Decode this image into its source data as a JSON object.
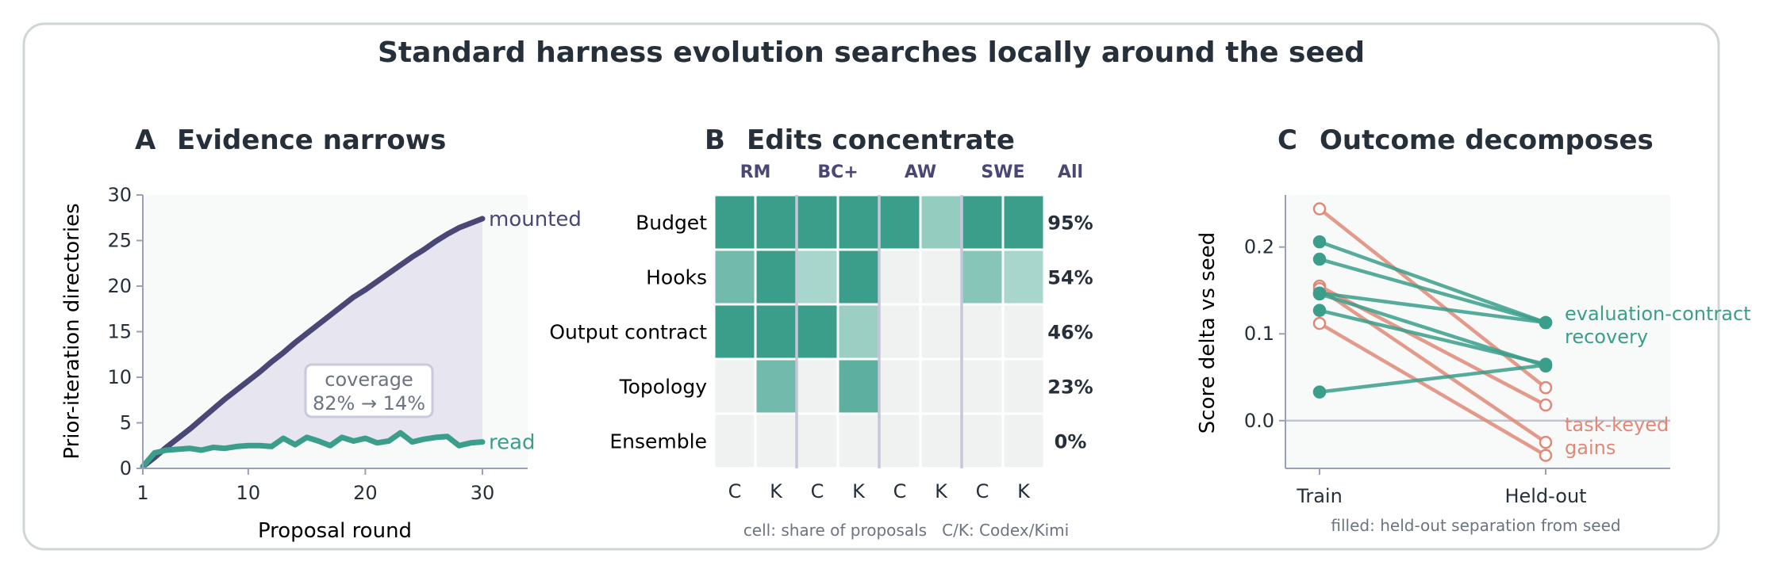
{
  "title": "Standard harness evolution searches locally around the seed",
  "colors": {
    "text": "#26303a",
    "muted": "#6b7480",
    "axis": "#9aa0b8",
    "purple": "#4a4675",
    "purple_fill": "#e6e5f0",
    "teal": "#3a9e8a",
    "salmon": "#e08878",
    "cell_empty": "#eff2f1",
    "panel_bg": "#f8faf9",
    "border": "#cfd6d4"
  },
  "chart_data": [
    {
      "type": "line",
      "panel_letter": "A",
      "title": "Evidence narrows",
      "xlabel": "Proposal round",
      "ylabel": "Prior-iteration directories",
      "xlim": [
        1,
        34
      ],
      "ylim": [
        0,
        30
      ],
      "xticks": [
        1,
        10,
        20,
        30
      ],
      "yticks": [
        0,
        5,
        10,
        15,
        20,
        25,
        30
      ],
      "x": [
        1,
        2,
        3,
        4,
        5,
        6,
        7,
        8,
        9,
        10,
        11,
        12,
        13,
        14,
        15,
        16,
        17,
        18,
        19,
        20,
        21,
        22,
        23,
        24,
        25,
        26,
        27,
        28,
        29,
        30
      ],
      "series": [
        {
          "name": "mounted",
          "color": "#4a4675",
          "values": [
            0.2,
            1.2,
            2.3,
            3.3,
            4.3,
            5.4,
            6.5,
            7.6,
            8.6,
            9.6,
            10.6,
            11.7,
            12.7,
            13.8,
            14.8,
            15.8,
            16.8,
            17.8,
            18.8,
            19.6,
            20.5,
            21.4,
            22.3,
            23.2,
            24.0,
            24.9,
            25.7,
            26.4,
            26.9,
            27.4
          ]
        },
        {
          "name": "read",
          "color": "#3a9e8a",
          "values": [
            0.2,
            1.7,
            2.0,
            2.1,
            2.2,
            2.0,
            2.3,
            2.2,
            2.4,
            2.5,
            2.5,
            2.4,
            3.3,
            2.6,
            3.4,
            3.0,
            2.5,
            3.4,
            3.0,
            3.3,
            2.8,
            3.0,
            3.9,
            2.9,
            3.2,
            3.4,
            3.5,
            2.5,
            2.8,
            2.9
          ]
        }
      ],
      "annotation": {
        "line1": "coverage",
        "line2": "82% → 14%"
      },
      "grid": false
    },
    {
      "type": "heatmap",
      "panel_letter": "B",
      "title": "Edits concentrate",
      "groups": [
        "RM",
        "BC+",
        "AW",
        "SWE"
      ],
      "all_label": "All",
      "columns": [
        "C",
        "K",
        "C",
        "K",
        "C",
        "K",
        "C",
        "K"
      ],
      "rows": [
        "Budget",
        "Hooks",
        "Output contract",
        "Topology",
        "Ensemble"
      ],
      "values": [
        [
          1.0,
          1.0,
          1.0,
          1.0,
          1.0,
          0.35,
          1.0,
          1.0
        ],
        [
          0.6,
          1.0,
          0.2,
          1.0,
          0.0,
          0.0,
          0.45,
          0.2
        ],
        [
          1.0,
          1.0,
          1.0,
          0.3,
          0.0,
          0.0,
          0.0,
          0.0
        ],
        [
          0.0,
          0.6,
          0.0,
          0.75,
          0.0,
          0.0,
          0.0,
          0.0
        ],
        [
          0.0,
          0.0,
          0.0,
          0.0,
          0.0,
          0.0,
          0.0,
          0.0
        ]
      ],
      "all_values": [
        "95%",
        "54%",
        "46%",
        "23%",
        "0%"
      ],
      "caption": "cell: share of proposals   C/K: Codex/Kimi"
    },
    {
      "type": "scatter",
      "panel_letter": "C",
      "title": "Outcome decomposes",
      "ylabel": "Score delta vs seed",
      "categories": [
        "Train",
        "Held-out"
      ],
      "ylim": [
        -0.055,
        0.26
      ],
      "yticks": [
        0.0,
        0.1,
        0.2
      ],
      "ytick_labels": [
        "0.0",
        "0.1",
        "0.2"
      ],
      "series": [
        {
          "name": "evaluation-contract recovery",
          "color": "#3a9e8a",
          "filled": true,
          "pairs": [
            [
              0.206,
              0.113
            ],
            [
              0.186,
              0.113
            ],
            [
              0.147,
              0.113
            ],
            [
              0.146,
              0.063
            ],
            [
              0.127,
              0.065
            ],
            [
              0.033,
              0.064
            ]
          ]
        },
        {
          "name": "task-keyed gains",
          "color": "#e08878",
          "filled": false,
          "pairs": [
            [
              0.244,
              0.038
            ],
            [
              0.155,
              0.018
            ],
            [
              0.152,
              -0.025
            ],
            [
              0.112,
              -0.04
            ]
          ]
        }
      ],
      "label_recovery": [
        "evaluation-contract",
        "recovery"
      ],
      "label_gains": [
        "task-keyed",
        "gains"
      ],
      "caption": "filled: held-out separation from seed"
    }
  ]
}
